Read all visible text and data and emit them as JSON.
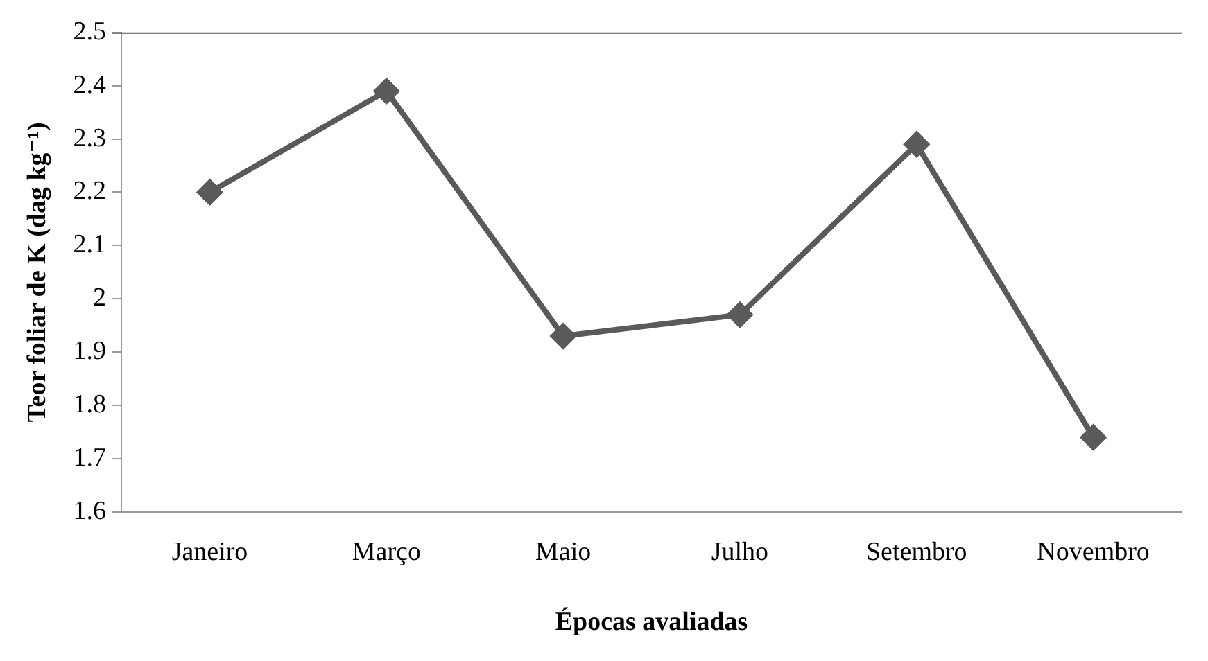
{
  "chart_data": {
    "type": "line",
    "xlabel": "Épocas avaliadas",
    "ylabel": "Teor foliar de K (dag kg⁻¹)",
    "categories": [
      "Janeiro",
      "Março",
      "Maio",
      "Julho",
      "Setembro",
      "Novembro"
    ],
    "series": [
      {
        "color": "#5a5a5a",
        "values": [
          2.2,
          2.39,
          1.93,
          1.97,
          2.29,
          1.74
        ]
      }
    ],
    "ylim": [
      1.6,
      2.5
    ],
    "yticks": [
      1.6,
      1.7,
      1.8,
      1.9,
      2,
      2.1,
      2.2,
      2.3,
      2.4,
      2.5
    ],
    "grid": false,
    "legend": false,
    "marker": "diamond",
    "line_style": "solid"
  }
}
